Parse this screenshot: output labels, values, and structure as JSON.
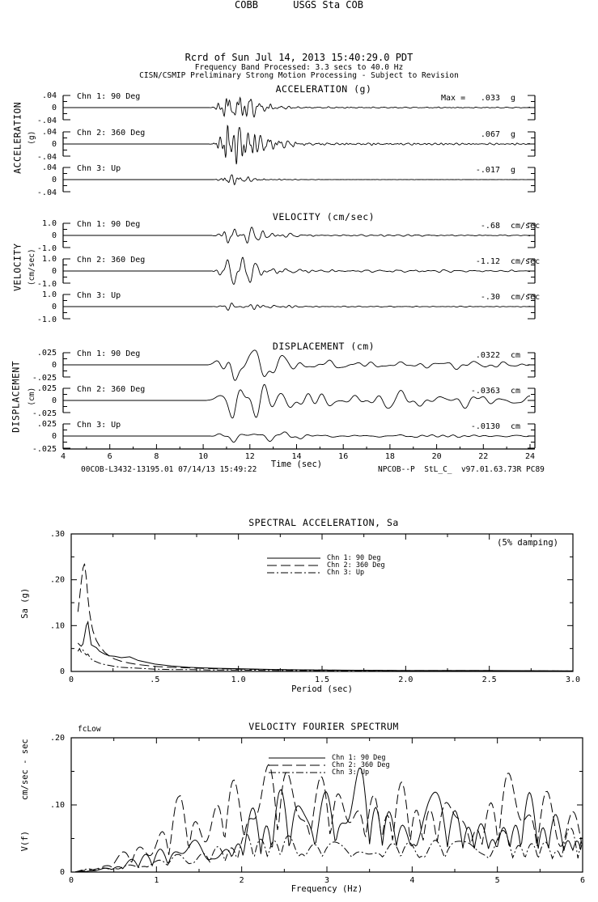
{
  "header": {
    "line1": "COBB      USGS Sta COB",
    "line2": "Rcrd of Sun Jul 14, 2013 15:40:29.0 PDT",
    "line3": "Frequency Band Processed: 3.3 secs to 40.0 Hz",
    "line4": "CISN/CSMIP Preliminary Strong Motion Processing - Subject to Revision"
  },
  "time_axis": {
    "label": "Time (sec)",
    "ticks": [
      4,
      6,
      8,
      10,
      12,
      14,
      16,
      18,
      20,
      22,
      24
    ],
    "t_min": 4,
    "t_max": 24
  },
  "footer": {
    "left": "00COB-L3432-13195.01 07/14/13 15:49:22",
    "right": "NPCOB--P  StL_C_  v97.01.63.73R PC89"
  },
  "chart_data": [
    {
      "id": "acceleration",
      "type": "line",
      "title": "ACCELERATION (g)",
      "side_label": "ACCELERATION",
      "side_unit": "(g)",
      "x_range": [
        4,
        24
      ],
      "xlabel": "Time (sec)",
      "ylim": 0.04,
      "y_ticks": [
        ".04",
        "0",
        "-.04"
      ],
      "channels": [
        {
          "label": "Chn 1: 90 Deg",
          "max_label": "Max =",
          "max_value": ".033",
          "unit": "g",
          "peak": 0.033,
          "seed": 101
        },
        {
          "label": "Chn 2: 360 Deg",
          "max_label": "",
          "max_value": ".067",
          "unit": "g",
          "peak": 0.067,
          "seed": 202
        },
        {
          "label": "Chn 3: Up",
          "max_label": "",
          "max_value": "-.017",
          "unit": "g",
          "peak": -0.017,
          "seed": 303
        }
      ],
      "envelope": {
        "f0": 2.0,
        "f1": 9.0,
        "t0": 10.25,
        "tp": 11.15,
        "att": 1.5,
        "tau": 1.1,
        "floor": 0.05,
        "tau2": 18
      }
    },
    {
      "id": "velocity",
      "type": "line",
      "title": "VELOCITY (cm/sec)",
      "side_label": "VELOCITY",
      "side_unit": "(cm/sec)",
      "x_range": [
        4,
        24
      ],
      "xlabel": "Time (sec)",
      "ylim": 1.0,
      "y_ticks": [
        "1.0",
        "0",
        "-1.0"
      ],
      "channels": [
        {
          "label": "Chn 1: 90 Deg",
          "max_label": "",
          "max_value": "-.68",
          "unit": "cm/sec",
          "peak": -0.68,
          "seed": 111
        },
        {
          "label": "Chn 2: 360 Deg",
          "max_label": "",
          "max_value": "-1.12",
          "unit": "cm/sec",
          "peak": -1.12,
          "seed": 222
        },
        {
          "label": "Chn 3: Up",
          "max_label": "",
          "max_value": "-.30",
          "unit": "cm/sec",
          "peak": -0.3,
          "seed": 333
        }
      ],
      "envelope": {
        "f0": 1.2,
        "f1": 5.0,
        "t0": 10.3,
        "tp": 11.2,
        "att": 1.5,
        "tau": 1.5,
        "floor": 0.1,
        "tau2": 22
      }
    },
    {
      "id": "displacement",
      "type": "line",
      "title": "DISPLACEMENT (cm)",
      "side_label": "DISPLACEMENT",
      "side_unit": "(cm)",
      "x_range": [
        4,
        24
      ],
      "xlabel": "Time (sec)",
      "ylim": 0.025,
      "y_ticks": [
        ".025",
        "0",
        "-.025"
      ],
      "channels": [
        {
          "label": "Chn 1: 90 Deg",
          "max_label": "",
          "max_value": ".0322",
          "unit": "cm",
          "peak": 0.0322,
          "seed": 404
        },
        {
          "label": "Chn 2: 360 Deg",
          "max_label": "",
          "max_value": "-.0363",
          "unit": "cm",
          "peak": -0.0363,
          "seed": 505
        },
        {
          "label": "Chn 3: Up",
          "max_label": "",
          "max_value": "-.0130",
          "unit": "cm",
          "peak": -0.013,
          "seed": 606
        }
      ],
      "envelope": {
        "f0": 0.5,
        "f1": 2.4,
        "t0": 10.0,
        "tp": 11.3,
        "att": 1.8,
        "tau": 3.0,
        "floor": 0.3,
        "tau2": 40
      }
    },
    {
      "id": "spectral_acceleration",
      "type": "line",
      "title": "SPECTRAL ACCELERATION, Sa",
      "damping_note": "(5% damping)",
      "xlabel": "Period (sec)",
      "ylabel": "Sa (g)",
      "xlim": [
        0,
        3.0
      ],
      "ylim": [
        0,
        0.3
      ],
      "x_ticks": [
        "0",
        ".5",
        "1.0",
        "1.5",
        "2.0",
        "2.5",
        "3.0"
      ],
      "y_ticks": [
        ".30",
        ".20",
        ".10",
        "0"
      ],
      "legend": [
        "Chn 1: 90 Deg",
        "Chn 2: 360 Deg",
        "Chn 3: Up"
      ],
      "periods": [
        0.04,
        0.05,
        0.06,
        0.07,
        0.08,
        0.09,
        0.1,
        0.11,
        0.12,
        0.13,
        0.15,
        0.17,
        0.2,
        0.23,
        0.26,
        0.3,
        0.35,
        0.4,
        0.5,
        0.6,
        0.7,
        0.85,
        1.0,
        1.25,
        1.5,
        2.0,
        2.5,
        3.0
      ],
      "series": [
        {
          "name": "Chn 1: 90 Deg",
          "dash": "solid",
          "values": [
            0.062,
            0.058,
            0.055,
            0.06,
            0.078,
            0.1,
            0.108,
            0.082,
            0.058,
            0.056,
            0.052,
            0.044,
            0.038,
            0.034,
            0.033,
            0.03,
            0.032,
            0.024,
            0.016,
            0.012,
            0.009,
            0.007,
            0.006,
            0.004,
            0.003,
            0.002,
            0.002,
            0.001
          ]
        },
        {
          "name": "Chn 2: 360 Deg",
          "dash": "long-dash",
          "values": [
            0.13,
            0.16,
            0.195,
            0.225,
            0.235,
            0.205,
            0.16,
            0.128,
            0.105,
            0.088,
            0.068,
            0.055,
            0.042,
            0.033,
            0.027,
            0.022,
            0.018,
            0.015,
            0.011,
            0.009,
            0.008,
            0.006,
            0.005,
            0.004,
            0.003,
            0.002,
            0.002,
            0.001
          ]
        },
        {
          "name": "Chn 3: Up",
          "dash": "dash-dot",
          "values": [
            0.044,
            0.05,
            0.042,
            0.047,
            0.04,
            0.036,
            0.038,
            0.032,
            0.027,
            0.024,
            0.021,
            0.018,
            0.015,
            0.013,
            0.011,
            0.009,
            0.008,
            0.007,
            0.005,
            0.004,
            0.004,
            0.003,
            0.003,
            0.002,
            0.002,
            0.001,
            0.001,
            0.001
          ]
        }
      ]
    },
    {
      "id": "velocity_fourier_spectrum",
      "type": "line",
      "title": "VELOCITY FOURIER SPECTRUM",
      "corner_label": "fcLow",
      "xlabel": "Frequency (Hz)",
      "ylabel": "V(f)      cm/sec - sec",
      "xlim": [
        0,
        6
      ],
      "ylim": [
        0,
        0.2
      ],
      "x_ticks": [
        "0",
        "1",
        "2",
        "3",
        "4",
        "5",
        "6"
      ],
      "y_ticks": [
        ".20",
        ".10",
        "0"
      ],
      "legend": [
        "Chn 1: 90 Deg",
        "Chn 2: 360 Deg",
        "Chn 3: Up"
      ],
      "series": [
        {
          "name": "Chn 1: 90 Deg",
          "dash": "solid",
          "seed": 7,
          "peak": 0.155,
          "f_peak": 3.1,
          "decay": 6.0,
          "tail": 0.35,
          "base": 0.25,
          "rise": 1.3
        },
        {
          "name": "Chn 2: 360 Deg",
          "dash": "long-dash",
          "seed": 13,
          "peak": 0.16,
          "f_peak": 2.2,
          "decay": 4.5,
          "tail": 0.3,
          "base": 0.25,
          "rise": 1.3
        },
        {
          "name": "Chn 3: Up",
          "dash": "dash-dot",
          "seed": 21,
          "peak": 0.065,
          "f_peak": 2.5,
          "decay": 8.0,
          "tail": 0.5,
          "base": 0.3,
          "rise": 1.1
        }
      ]
    }
  ]
}
